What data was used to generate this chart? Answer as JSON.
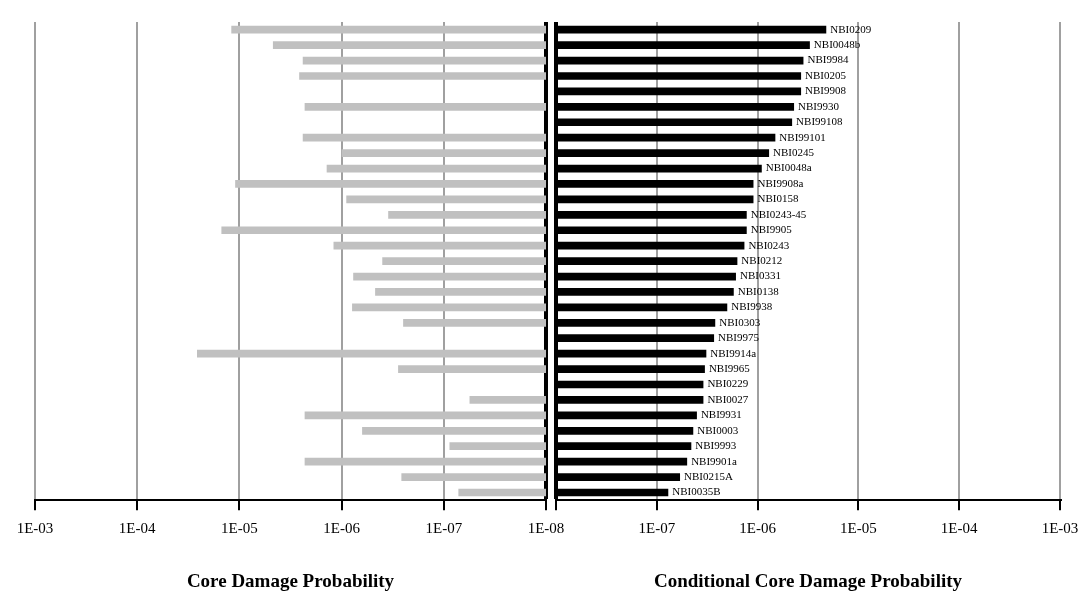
{
  "chart_data": [
    {
      "type": "bar",
      "orientation": "horizontal",
      "log": "x",
      "xlabel": "Core Damage Probability",
      "grid": "x",
      "tick_labels": "x",
      "categories": [
        null,
        null,
        null,
        null,
        null,
        null,
        null,
        null,
        null,
        null,
        null,
        null,
        null,
        null,
        null,
        null,
        null,
        null,
        null,
        null,
        null,
        null,
        null,
        null,
        null,
        null,
        null,
        null,
        null,
        null,
        null
      ],
      "series": [
        {
          "color": "#c0c0c0",
          "values": [
            1.2e-05,
            4.7e-06,
            2.4e-06,
            2.6e-06,
            null,
            2.3e-06,
            null,
            2.4e-06,
            1e-06,
            1.4e-06,
            1.1e-05,
            9e-07,
            3.5e-07,
            1.5e-05,
            1.2e-06,
            4e-07,
            7.7e-07,
            4.7e-07,
            7.9e-07,
            2.5e-07,
            null,
            2.6e-05,
            2.8e-07,
            null,
            5.6e-08,
            2.3e-06,
            6.3e-07,
            8.8e-08,
            2.3e-06,
            2.6e-07,
            7.2e-08
          ]
        }
      ],
      "xlim": [
        0.001,
        1e-08
      ],
      "xticks": [
        {
          "value": 0.001,
          "label": "1E-03"
        },
        {
          "value": 0.0001,
          "label": "1E-04"
        },
        {
          "value": 1e-05,
          "label": "1E-05"
        },
        {
          "value": 1e-06,
          "label": "1E-06"
        },
        {
          "value": 1e-07,
          "label": "1E-07"
        },
        {
          "value": 1e-08,
          "label": "1E-08"
        }
      ]
    },
    {
      "type": "bar",
      "orientation": "horizontal",
      "log": "x",
      "xlabel": "Conditional Core Damage Probability",
      "grid": "x",
      "categories": [
        "NBI0209",
        "NBI0048b",
        "NBI9984",
        "NBI0205",
        "NBI9908",
        "NBI9930",
        "NBI99108",
        "NBI99101",
        "NBI0245",
        "NBI0048a",
        "NBI9908a",
        "NBI0158",
        "NBI0243-45",
        "NBI9905",
        "NBI0243",
        "NBI0212",
        "NBI0331",
        "NBI0138",
        "NBI9938",
        "NBI0303",
        "NBI9975",
        "NBI9914a",
        "NBI9965",
        "NBI0229",
        "NBI0027",
        "NBI9931",
        "NBI0003",
        "NBI9993",
        "NBI9901a",
        "NBI0215A",
        "NBI0035B"
      ],
      "series": [
        {
          "color": "#000000",
          "values": [
            4.8e-06,
            3.3e-06,
            2.85e-06,
            2.7e-06,
            2.7e-06,
            2.3e-06,
            2.2e-06,
            1.5e-06,
            1.3e-06,
            1.1e-06,
            9.1e-07,
            9.1e-07,
            7.8e-07,
            7.8e-07,
            7.4e-07,
            6.3e-07,
            6.1e-07,
            5.8e-07,
            5e-07,
            3.8e-07,
            3.7e-07,
            3.1e-07,
            3e-07,
            2.9e-07,
            2.9e-07,
            2.5e-07,
            2.3e-07,
            2.2e-07,
            2e-07,
            1.7e-07,
            1.3e-07
          ]
        }
      ],
      "xlim": [
        1e-08,
        0.001
      ],
      "xticks": [
        {
          "value": 1e-08,
          "label": null
        },
        {
          "value": 1e-07,
          "label": "1E-07"
        },
        {
          "value": 1e-06,
          "label": "1E-06"
        },
        {
          "value": 1e-05,
          "label": "1E-05"
        },
        {
          "value": 0.0001,
          "label": "1E-04"
        },
        {
          "value": 0.001,
          "label": "1E-03"
        }
      ]
    }
  ]
}
